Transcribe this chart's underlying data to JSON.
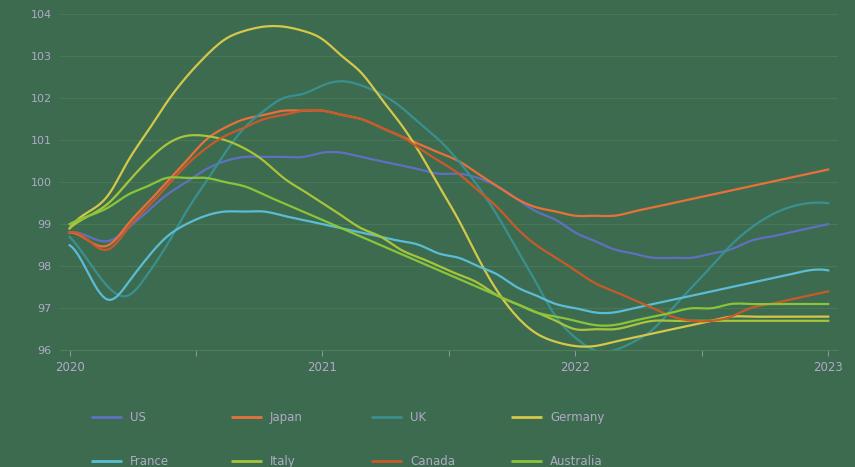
{
  "background_color": "#3d6b4f",
  "ylim": [
    96,
    104
  ],
  "yticks": [
    96,
    97,
    98,
    99,
    100,
    101,
    102,
    103,
    104
  ],
  "x_labels": [
    "2020",
    "2021",
    "2022",
    "2023"
  ],
  "series": {
    "US": {
      "color": "#6070c0",
      "linewidth": 1.6,
      "data": [
        98.8,
        98.7,
        98.6,
        98.9,
        99.3,
        99.7,
        100.0,
        100.3,
        100.5,
        100.6,
        100.6,
        100.6,
        100.6,
        100.7,
        100.7,
        100.6,
        100.5,
        100.4,
        100.3,
        100.2,
        100.2,
        100.1,
        99.9,
        99.6,
        99.3,
        99.1,
        98.8,
        98.6,
        98.4,
        98.3,
        98.2,
        98.2,
        98.2,
        98.3,
        98.4,
        98.6,
        98.7,
        98.8,
        98.9,
        99.0
      ]
    },
    "Japan": {
      "color": "#e8703a",
      "linewidth": 1.6,
      "data": [
        98.8,
        98.6,
        98.5,
        99.0,
        99.5,
        100.0,
        100.5,
        101.0,
        101.3,
        101.5,
        101.6,
        101.7,
        101.7,
        101.7,
        101.6,
        101.5,
        101.3,
        101.1,
        100.9,
        100.7,
        100.5,
        100.2,
        99.9,
        99.6,
        99.4,
        99.3,
        99.2,
        99.2,
        99.2,
        99.3,
        99.4,
        99.5,
        99.6,
        99.7,
        99.8,
        99.9,
        100.0,
        100.1,
        100.2,
        100.3
      ]
    },
    "UK": {
      "color": "#3a8f8f",
      "linewidth": 1.6,
      "data": [
        98.7,
        98.1,
        97.5,
        97.3,
        97.8,
        98.5,
        99.3,
        100.0,
        100.7,
        101.3,
        101.7,
        102.0,
        102.1,
        102.3,
        102.4,
        102.3,
        102.1,
        101.8,
        101.4,
        101.0,
        100.5,
        99.9,
        99.2,
        98.4,
        97.6,
        96.8,
        96.3,
        96.0,
        96.0,
        96.2,
        96.5,
        97.0,
        97.5,
        98.0,
        98.5,
        98.9,
        99.2,
        99.4,
        99.5,
        99.5
      ]
    },
    "Germany": {
      "color": "#d4c84a",
      "linewidth": 1.6,
      "data": [
        98.9,
        99.3,
        99.7,
        100.5,
        101.2,
        101.9,
        102.5,
        103.0,
        103.4,
        103.6,
        103.7,
        103.7,
        103.6,
        103.4,
        103.0,
        102.6,
        102.0,
        101.4,
        100.7,
        99.9,
        99.1,
        98.2,
        97.4,
        96.8,
        96.4,
        96.2,
        96.1,
        96.1,
        96.2,
        96.3,
        96.4,
        96.5,
        96.6,
        96.7,
        96.8,
        96.8,
        96.8,
        96.8,
        96.8,
        96.8
      ]
    },
    "France": {
      "color": "#5bbcd6",
      "linewidth": 1.6,
      "data": [
        98.5,
        97.8,
        97.2,
        97.6,
        98.2,
        98.7,
        99.0,
        99.2,
        99.3,
        99.3,
        99.3,
        99.2,
        99.1,
        99.0,
        98.9,
        98.8,
        98.7,
        98.6,
        98.5,
        98.3,
        98.2,
        98.0,
        97.8,
        97.5,
        97.3,
        97.1,
        97.0,
        96.9,
        96.9,
        97.0,
        97.1,
        97.2,
        97.3,
        97.4,
        97.5,
        97.6,
        97.7,
        97.8,
        97.9,
        97.9
      ]
    },
    "Italy": {
      "color": "#a8c43a",
      "linewidth": 1.6,
      "data": [
        98.9,
        99.2,
        99.5,
        100.0,
        100.5,
        100.9,
        101.1,
        101.1,
        101.0,
        100.8,
        100.5,
        100.1,
        99.8,
        99.5,
        99.2,
        98.9,
        98.7,
        98.4,
        98.2,
        98.0,
        97.8,
        97.6,
        97.3,
        97.1,
        96.9,
        96.7,
        96.5,
        96.5,
        96.5,
        96.6,
        96.7,
        96.7,
        96.7,
        96.7,
        96.7,
        96.7,
        96.7,
        96.7,
        96.7,
        96.7
      ]
    },
    "Canada": {
      "color": "#c85a2a",
      "linewidth": 1.6,
      "data": [
        98.8,
        98.6,
        98.4,
        98.9,
        99.4,
        99.9,
        100.4,
        100.8,
        101.1,
        101.3,
        101.5,
        101.6,
        101.7,
        101.7,
        101.6,
        101.5,
        101.3,
        101.1,
        100.8,
        100.5,
        100.2,
        99.8,
        99.4,
        98.9,
        98.5,
        98.2,
        97.9,
        97.6,
        97.4,
        97.2,
        97.0,
        96.8,
        96.7,
        96.7,
        96.8,
        97.0,
        97.1,
        97.2,
        97.3,
        97.4
      ]
    },
    "Australia": {
      "color": "#8ac43a",
      "linewidth": 1.6,
      "data": [
        99.0,
        99.2,
        99.4,
        99.7,
        99.9,
        100.1,
        100.1,
        100.1,
        100.0,
        99.9,
        99.7,
        99.5,
        99.3,
        99.1,
        98.9,
        98.7,
        98.5,
        98.3,
        98.1,
        97.9,
        97.7,
        97.5,
        97.3,
        97.1,
        96.9,
        96.8,
        96.7,
        96.6,
        96.6,
        96.7,
        96.8,
        96.9,
        97.0,
        97.0,
        97.1,
        97.1,
        97.1,
        97.1,
        97.1,
        97.1
      ]
    }
  },
  "legend": [
    {
      "label": "US",
      "color": "#6070c0"
    },
    {
      "label": "Japan",
      "color": "#e8703a"
    },
    {
      "label": "UK",
      "color": "#3a8f8f"
    },
    {
      "label": "Germany",
      "color": "#d4c84a"
    },
    {
      "label": "France",
      "color": "#5bbcd6"
    },
    {
      "label": "Italy",
      "color": "#a8c43a"
    },
    {
      "label": "Canada",
      "color": "#c85a2a"
    },
    {
      "label": "Australia",
      "color": "#8ac43a"
    }
  ],
  "text_color": "#b0aac8",
  "grid_color": "#4e7e5a",
  "tick_color": "#b0aac8"
}
